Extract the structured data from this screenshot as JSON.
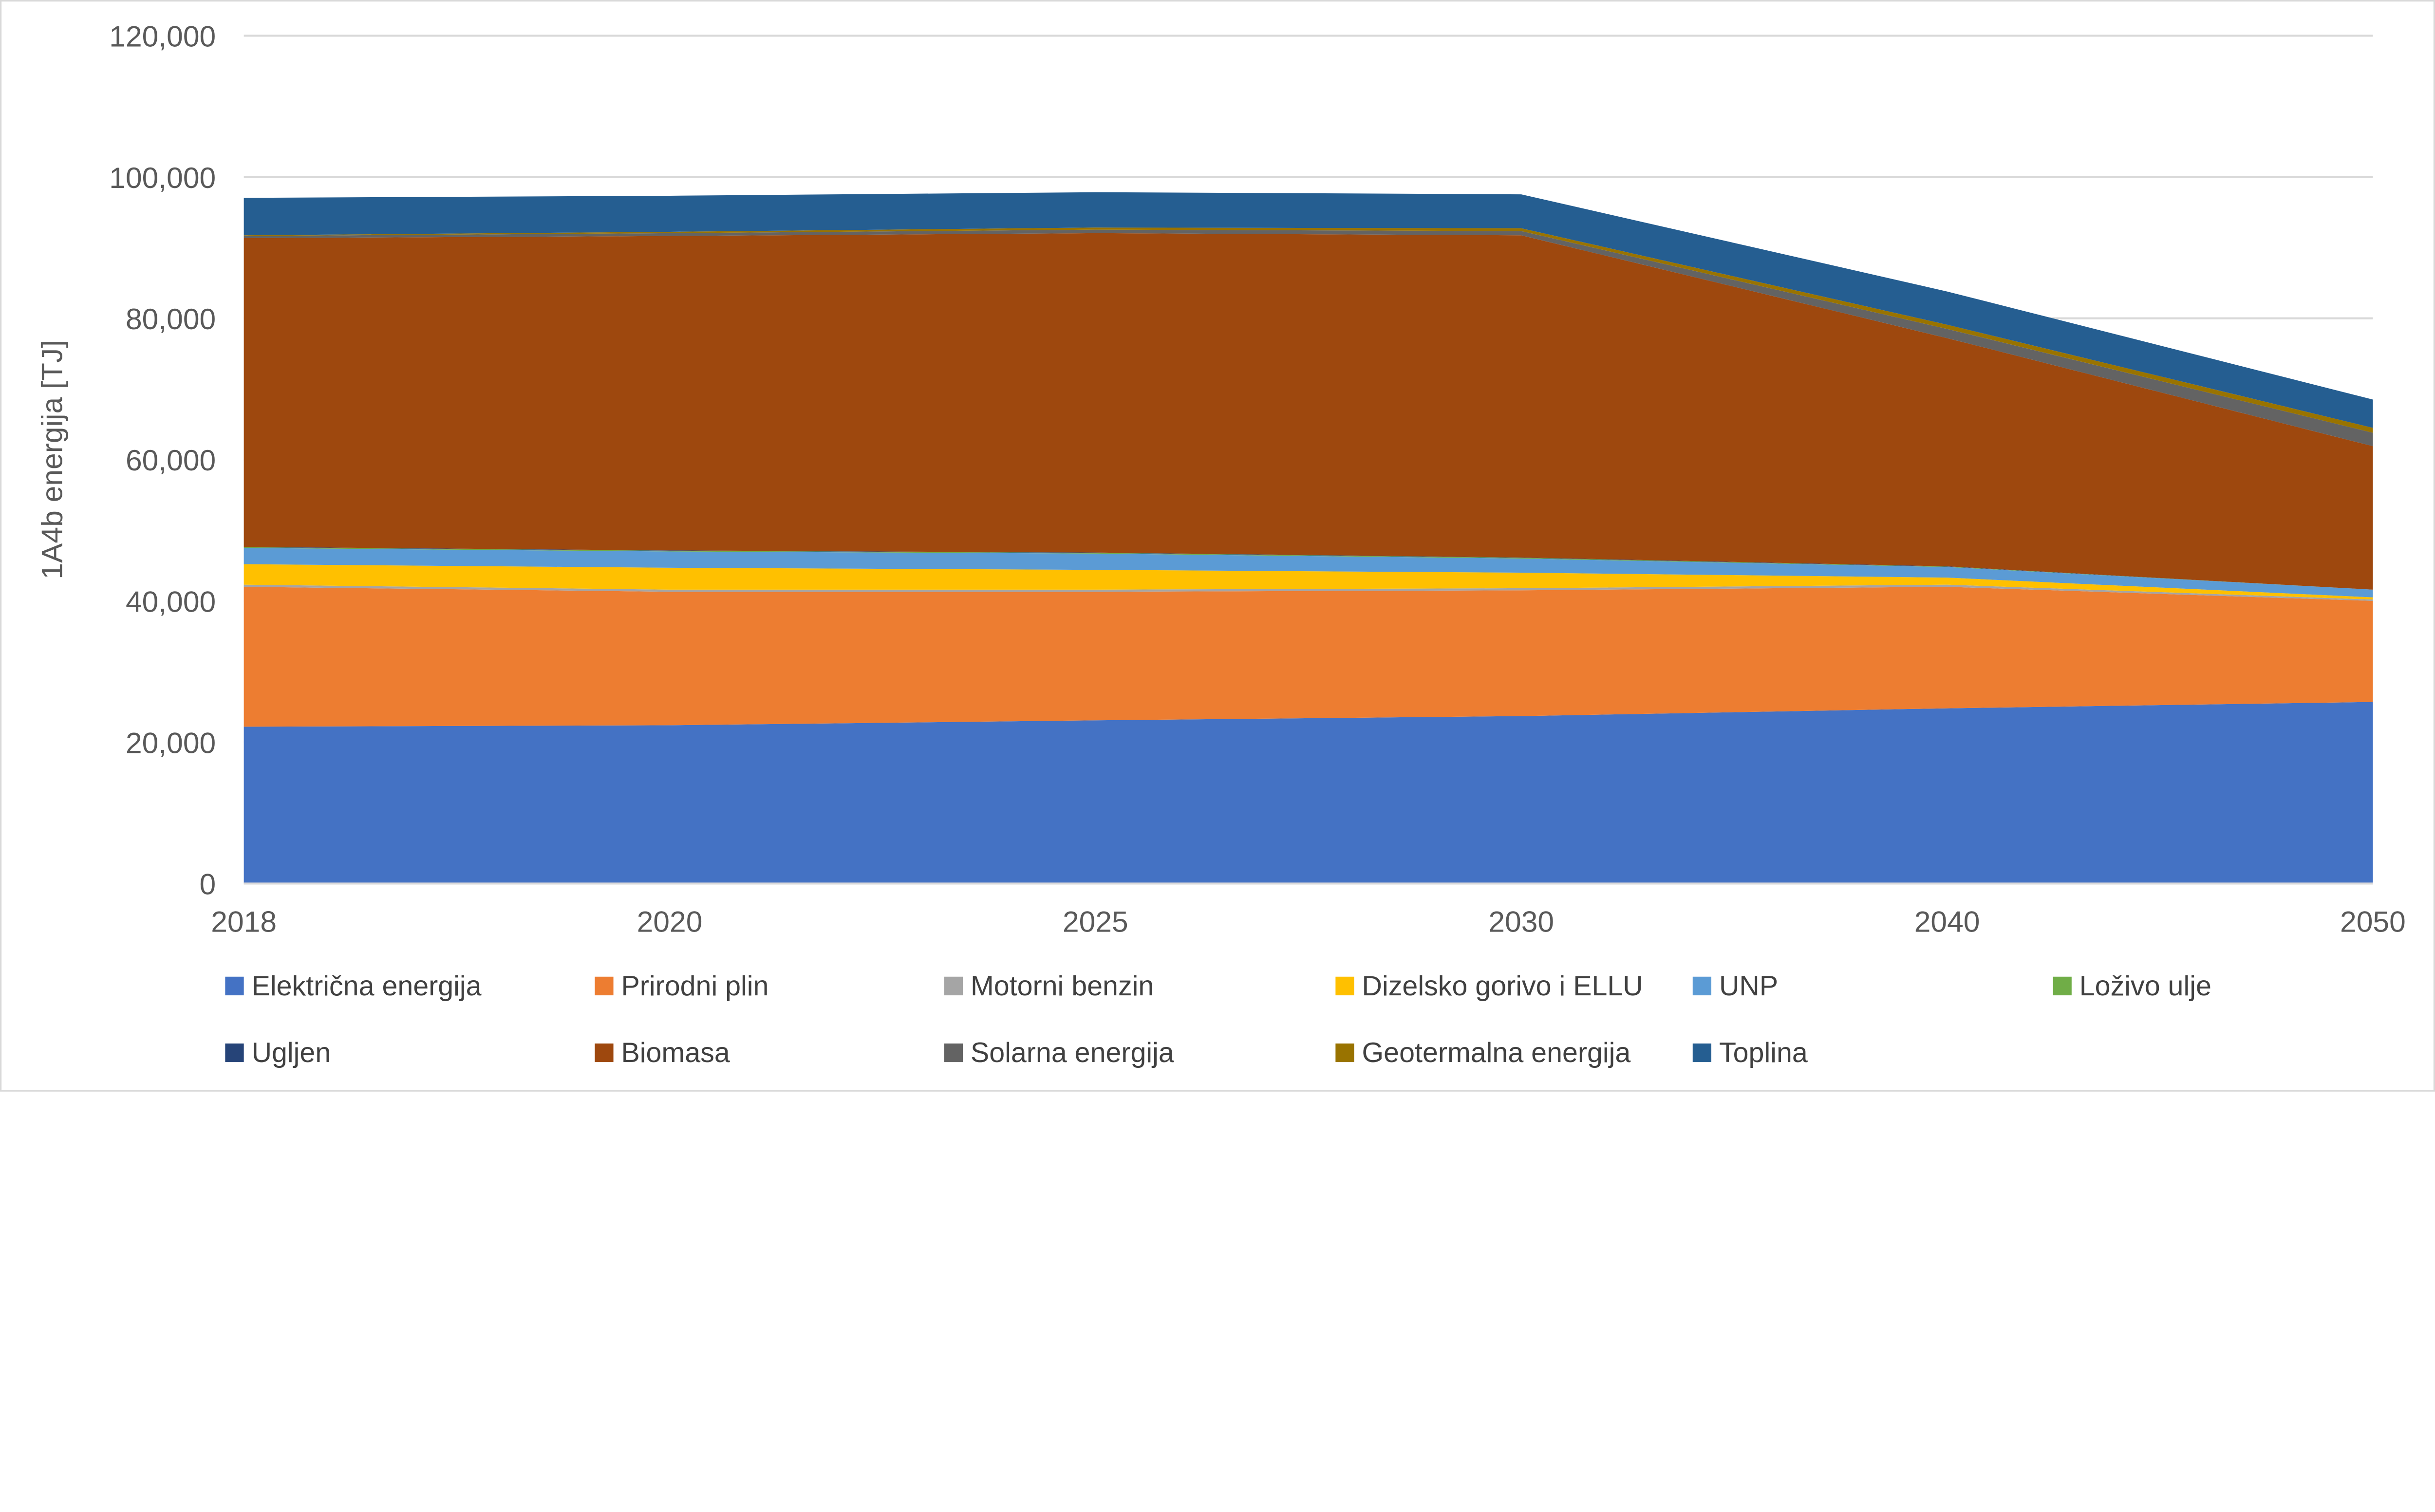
{
  "chart_data": {
    "type": "area",
    "stacked": true,
    "title": "",
    "xlabel": "",
    "ylabel": "1A4b energija [TJ]",
    "categories": [
      "2018",
      "2020",
      "2025",
      "2030",
      "2040",
      "2050"
    ],
    "ylim": [
      0,
      120000
    ],
    "yticks": [
      "0",
      "20,000",
      "40,000",
      "60,000",
      "80,000",
      "100,000",
      "120,000"
    ],
    "ytick_values": [
      0,
      20000,
      40000,
      60000,
      80000,
      100000,
      120000
    ],
    "grid": true,
    "legend_placement": "bottom",
    "series": [
      {
        "name": "Električna energija",
        "color": "#4472C4",
        "values": [
          22200,
          22400,
          23100,
          23700,
          24800,
          25700
        ]
      },
      {
        "name": "Prirodni plin",
        "color": "#ED7D31",
        "values": [
          19800,
          18900,
          18200,
          17800,
          17200,
          14300
        ]
      },
      {
        "name": "Motorni benzin",
        "color": "#A5A5A5",
        "values": [
          300,
          300,
          300,
          300,
          300,
          200
        ]
      },
      {
        "name": "Dizelsko gorivo i ELLU",
        "color": "#FFC000",
        "values": [
          2900,
          3100,
          2800,
          2200,
          1000,
          300
        ]
      },
      {
        "name": "UNP",
        "color": "#5B9BD5",
        "values": [
          2300,
          2300,
          2300,
          2000,
          1500,
          1100
        ]
      },
      {
        "name": "Loživo ulje",
        "color": "#70AD47",
        "values": [
          100,
          100,
          100,
          100,
          50,
          0
        ]
      },
      {
        "name": "Ugljen",
        "color": "#264478",
        "values": [
          50,
          50,
          50,
          50,
          50,
          0
        ]
      },
      {
        "name": "Biomasa",
        "color": "#9E480E",
        "values": [
          43700,
          44500,
          45200,
          45600,
          32300,
          20300
        ]
      },
      {
        "name": "Solarna energija",
        "color": "#636363",
        "values": [
          300,
          400,
          500,
          600,
          1300,
          1900
        ]
      },
      {
        "name": "Geotermalna energija",
        "color": "#997300",
        "values": [
          100,
          200,
          300,
          400,
          600,
          700
        ]
      },
      {
        "name": "Toplina",
        "color": "#255E91",
        "values": [
          5300,
          5100,
          5000,
          4800,
          4700,
          4000
        ]
      }
    ]
  }
}
